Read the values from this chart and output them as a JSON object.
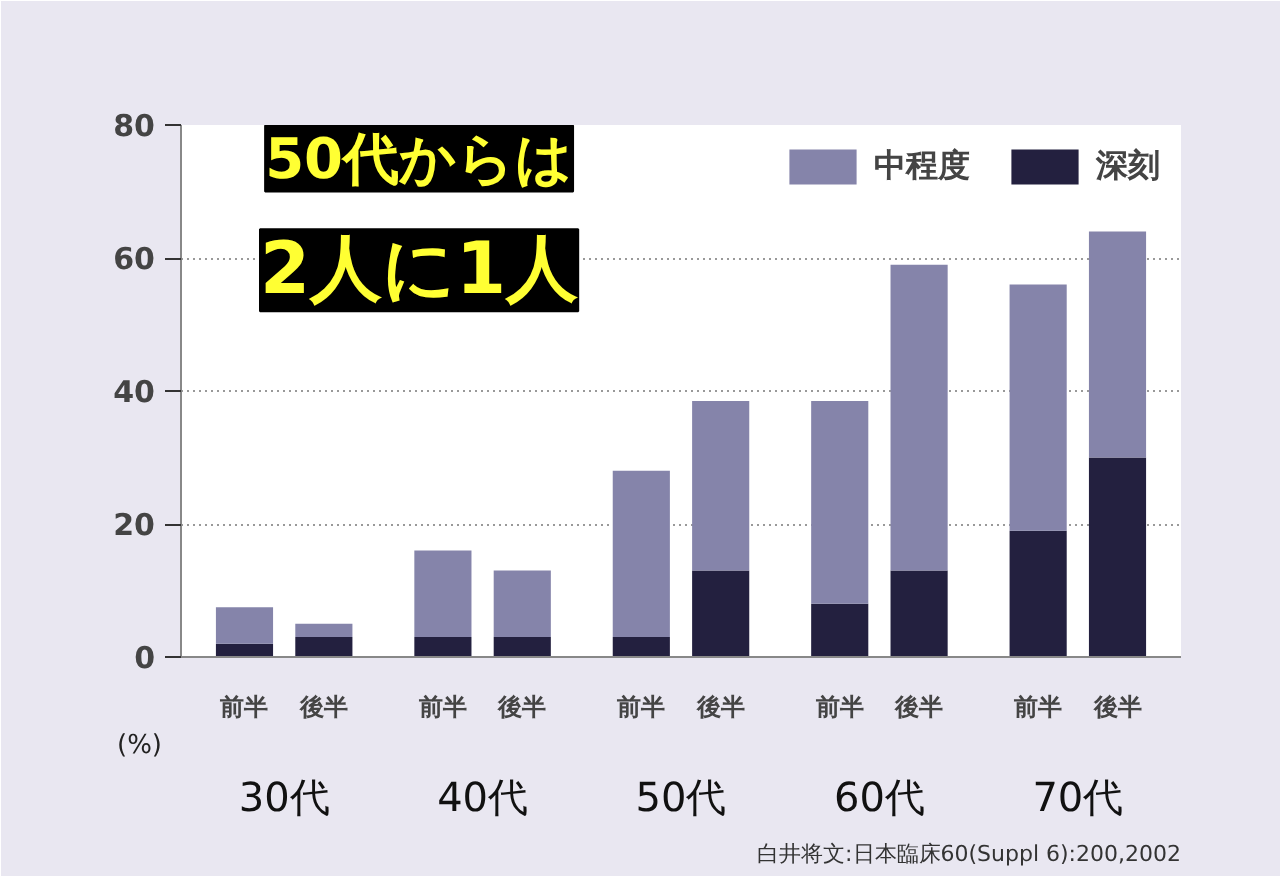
{
  "chart_data": {
    "type": "bar",
    "stacked": true,
    "categories": [
      "前半",
      "後半",
      "前半",
      "後半",
      "前半",
      "後半",
      "前半",
      "後半",
      "前半",
      "後半"
    ],
    "series": [
      {
        "name": "深刻",
        "color": "#23203f",
        "values": [
          2,
          3,
          3,
          3,
          3,
          13,
          8,
          13,
          19,
          30
        ]
      },
      {
        "name": "中程度",
        "color": "#8584aa",
        "values": [
          5.5,
          2,
          13,
          10,
          25,
          25.5,
          30.5,
          46,
          37,
          34
        ]
      }
    ],
    "ylim": [
      0,
      80
    ],
    "yticks": [
      0,
      20,
      40,
      60,
      80
    ],
    "grid": "y",
    "legend": "top right",
    "ylabel": "(%)",
    "annotations": [
      "50代からは",
      "2人に1人",
      "30代",
      "40代",
      "50代",
      "60代",
      "70代",
      "白井将文:日本臨床60(Suppl 6):200,2002"
    ]
  }
}
